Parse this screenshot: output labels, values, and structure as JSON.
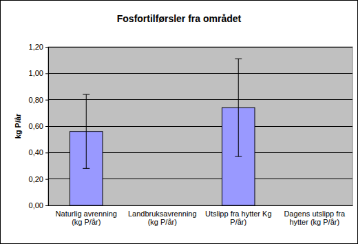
{
  "chart_data": {
    "type": "bar",
    "title": "Fosfortilførsler fra området",
    "y_label": "kg P/år",
    "categories": [
      "Naturlig avrenning (kg P/år)",
      "Landbruksavrenning (kg P/år)",
      "Utslipp fra hytter Kg P/år)",
      "Dagens utslipp fra hytter (kg P/år)"
    ],
    "values": [
      0.56,
      null,
      0.74,
      null
    ],
    "errors": [
      0.28,
      null,
      0.37,
      null
    ],
    "color": "#9999ff",
    "ylim": [
      0,
      1.2
    ],
    "yticks": [
      {
        "value": 0,
        "label": "0,00"
      },
      {
        "value": 0.2,
        "label": "0,20"
      },
      {
        "value": 0.4,
        "label": "0,40"
      },
      {
        "value": 0.6,
        "label": "0,60"
      },
      {
        "value": 0.8,
        "label": "0,80"
      },
      {
        "value": 1.0,
        "label": "1,00"
      },
      {
        "value": 1.2,
        "label": "1,20"
      }
    ],
    "grid": true
  }
}
